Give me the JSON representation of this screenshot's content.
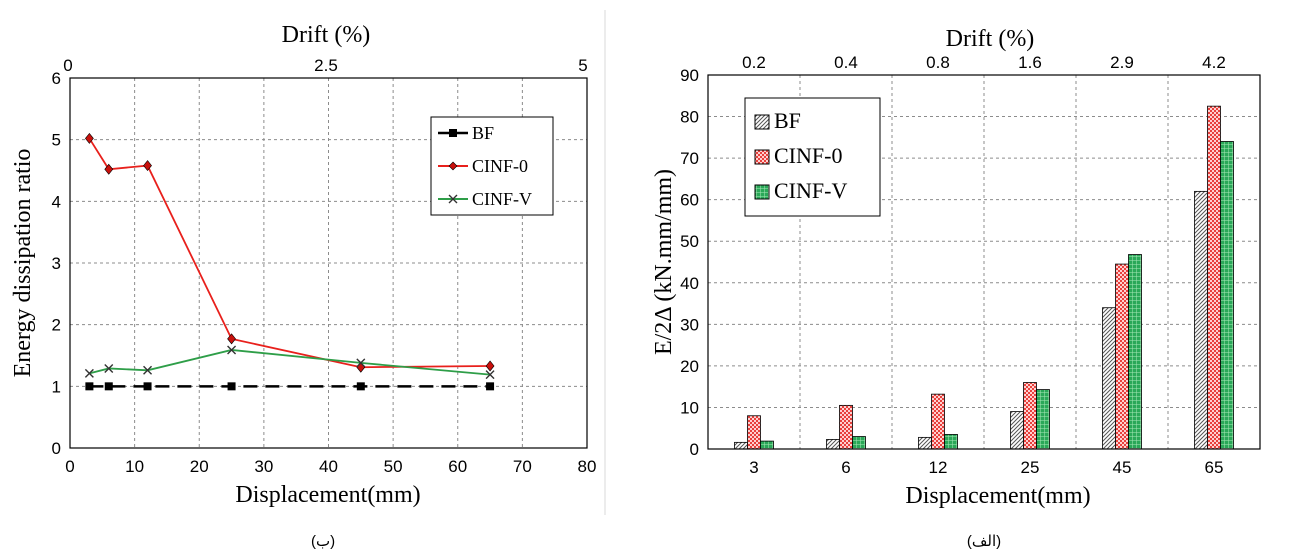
{
  "chart_data": [
    {
      "type": "line",
      "title": "",
      "top_axis_label": "Drift (%)",
      "top_ticks": [
        "0",
        "2.5",
        "5"
      ],
      "xlabel": "Displacement(mm)",
      "ylabel": "Energy dissipation ratio",
      "xlim": [
        0,
        80
      ],
      "ylim": [
        0,
        6
      ],
      "x_ticks": [
        "0",
        "10",
        "20",
        "30",
        "40",
        "50",
        "60",
        "70",
        "80"
      ],
      "y_ticks": [
        "0",
        "1",
        "2",
        "3",
        "4",
        "5",
        "6"
      ],
      "grid": true,
      "legend_position": "top-right",
      "series": [
        {
          "name": "BF",
          "color": "#000000",
          "marker": "square",
          "dashed": true,
          "x": [
            3,
            6,
            12,
            25,
            45,
            65
          ],
          "y": [
            1,
            1,
            1,
            1,
            1,
            1
          ]
        },
        {
          "name": "CINF-0",
          "color": "#e8201c",
          "marker": "diamond",
          "dashed": false,
          "x": [
            3,
            6,
            12,
            25,
            45,
            65
          ],
          "y": [
            5.02,
            4.52,
            4.58,
            1.77,
            1.31,
            1.33
          ]
        },
        {
          "name": "CINF-V",
          "color": "#2e9e48",
          "marker": "x",
          "dashed": false,
          "x": [
            3,
            6,
            12,
            25,
            45,
            65
          ],
          "y": [
            1.21,
            1.29,
            1.26,
            1.59,
            1.38,
            1.19
          ]
        }
      ],
      "caption": "(ب)"
    },
    {
      "type": "bar",
      "title": "",
      "top_axis_label": "Drift (%)",
      "top_ticks": [
        "0.2",
        "0.4",
        "0.8",
        "1.6",
        "2.9",
        "4.2"
      ],
      "xlabel": "Displacement(mm)",
      "ylabel": "E/2Δ (kN.mm/mm)",
      "categories": [
        "3",
        "6",
        "12",
        "25",
        "45",
        "65"
      ],
      "ylim": [
        0,
        90
      ],
      "y_ticks": [
        "0",
        "10",
        "20",
        "30",
        "40",
        "50",
        "60",
        "70",
        "80",
        "90"
      ],
      "grid": true,
      "legend_position": "top-left",
      "series": [
        {
          "name": "BF",
          "color": "#b8b8b8",
          "pattern": "hatch",
          "values": [
            1.6,
            2.3,
            2.8,
            9.0,
            34.0,
            62.0
          ]
        },
        {
          "name": "CINF-0",
          "color": "#ff8a8a",
          "pattern": "checker",
          "values": [
            8.0,
            10.5,
            13.2,
            16.0,
            44.5,
            82.5
          ]
        },
        {
          "name": "CINF-V",
          "color": "#3cb563",
          "pattern": "grid",
          "values": [
            1.9,
            3.0,
            3.5,
            14.3,
            46.8,
            74.0
          ]
        }
      ],
      "caption": "(الف)"
    }
  ]
}
